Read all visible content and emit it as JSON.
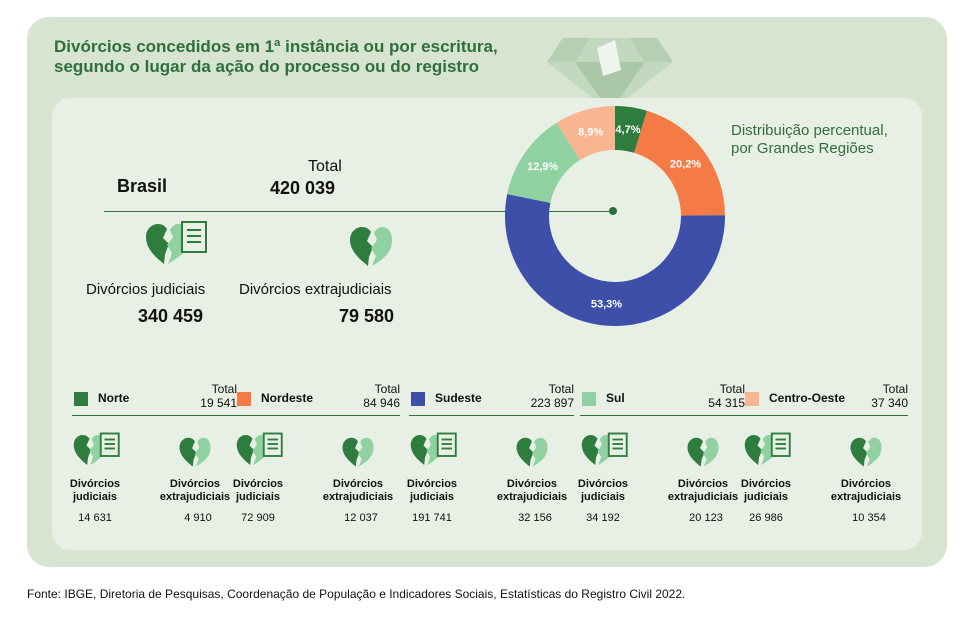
{
  "title_line1": "Divórcios concedidos em 1ª instância ou por escritura,",
  "title_line2": "segundo o lugar da ação do processo ou do registro",
  "brasil": {
    "label": "Brasil",
    "total_label": "Total",
    "total_value": "420 039",
    "judiciais_label": "Divórcios judiciais",
    "judiciais_value": "340 459",
    "extrajudiciais_label": "Divórcios extrajudiciais",
    "extrajudiciais_value": "79 580"
  },
  "distribution_title_line1": "Distribuição  percentual,",
  "distribution_title_line2": "por Grandes Regiões",
  "region_total_label": "Total",
  "region_jud_line1": "Divórcios",
  "region_jud_line2": "judiciais",
  "region_ext_line1": "Divórcios",
  "region_ext_line2": "extrajudiciais",
  "regions": [
    {
      "name": "Norte",
      "total": "19 541",
      "judiciais": "14 631",
      "extrajudiciais": "4 910",
      "color": "#2e7d3f"
    },
    {
      "name": "Nordeste",
      "total": "84 946",
      "judiciais": "72 909",
      "extrajudiciais": "12 037",
      "color": "#f47b45"
    },
    {
      "name": "Sudeste",
      "total": "223 897",
      "judiciais": "191 741",
      "extrajudiciais": "32 156",
      "color": "#3d4fa8"
    },
    {
      "name": "Sul",
      "total": "54 315",
      "judiciais": "34 192",
      "extrajudiciais": "20 123",
      "color": "#8fd1a0"
    },
    {
      "name": "Centro-Oeste",
      "total": "37 340",
      "judiciais": "26 986",
      "extrajudiciais": "10 354",
      "color": "#f9b58f"
    }
  ],
  "source": "Fonte: IBGE, Diretoria de Pesquisas, Coordenação de População e Indicadores Sociais, Estatísticas do Registro Civil 2022.",
  "chart_data": {
    "type": "pie",
    "title": "Distribuição percentual, por Grandes Regiões",
    "categories": [
      "Norte",
      "Nordeste",
      "Sudeste",
      "Sul",
      "Centro-Oeste"
    ],
    "values": [
      4.7,
      20.2,
      53.3,
      12.9,
      8.9
    ],
    "labels": [
      "4,7%",
      "20,2%",
      "53,3%",
      "12,9%",
      "8,9%"
    ],
    "colors": [
      "#2e7d3f",
      "#f47b45",
      "#3d4fa8",
      "#8fd1a0",
      "#f9b58f"
    ]
  }
}
